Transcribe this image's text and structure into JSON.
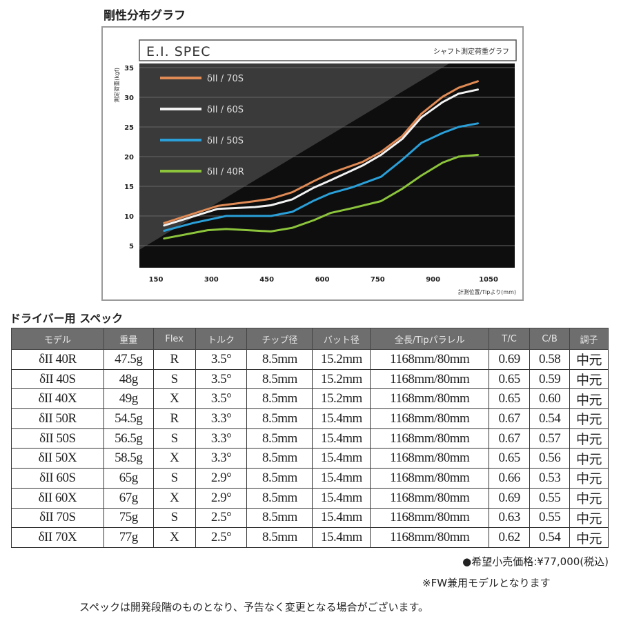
{
  "title": "剛性分布グラフ",
  "chart_data": {
    "type": "line",
    "header": "E.I. SPEC",
    "subtitle": "シャフト測定荷重グラフ",
    "ylabel": "測定荷重(kgf)",
    "xlabel": "計測位置/Tipより(mm)",
    "xticks": [
      150,
      300,
      450,
      600,
      750,
      900,
      1050
    ],
    "yticks": [
      5,
      10,
      15,
      20,
      25,
      30,
      35
    ],
    "xlim": [
      150,
      1050
    ],
    "ylim": [
      5,
      35
    ],
    "grid": true,
    "legend": "top-left",
    "series": [
      {
        "name": "δII / 70S",
        "color": "#e08a55",
        "x": [
          172,
          317,
          418,
          461,
          519,
          578,
          622,
          709,
          759,
          817,
          868,
          926,
          969,
          1021
        ],
        "y": [
          8.8,
          11.7,
          12.5,
          12.9,
          14.0,
          15.9,
          17.2,
          19.1,
          20.8,
          23.5,
          27.2,
          30.1,
          31.6,
          32.7
        ]
      },
      {
        "name": "δII / 60S",
        "color": "#f2f2f2",
        "x": [
          172,
          317,
          418,
          461,
          519,
          578,
          622,
          709,
          759,
          817,
          868,
          926,
          969,
          1021
        ],
        "y": [
          8.4,
          11.2,
          11.5,
          11.8,
          12.8,
          14.8,
          16.0,
          18.5,
          20.3,
          23.0,
          26.6,
          29.2,
          30.6,
          31.3
        ]
      },
      {
        "name": "δII / 50S",
        "color": "#2a9fd8",
        "x": [
          172,
          250,
          340,
          461,
          519,
          578,
          622,
          680,
          759,
          817,
          868,
          926,
          969,
          1021
        ],
        "y": [
          7.5,
          8.8,
          10.0,
          10.0,
          10.7,
          12.6,
          13.8,
          14.8,
          16.6,
          19.5,
          22.3,
          24.0,
          25.0,
          25.6
        ]
      },
      {
        "name": "δII / 40R",
        "color": "#8cc43c",
        "x": [
          172,
          290,
          340,
          461,
          519,
          578,
          622,
          680,
          759,
          817,
          868,
          926,
          969,
          1021
        ],
        "y": [
          6.2,
          7.6,
          7.8,
          7.4,
          8.0,
          9.3,
          10.5,
          11.3,
          12.5,
          14.6,
          16.8,
          19.0,
          20.0,
          20.3
        ]
      }
    ]
  },
  "specs": {
    "title": "ドライバー用 スペック",
    "headers": [
      "モデル",
      "重量",
      "Flex",
      "トルク",
      "チップ径",
      "バット径",
      "全長/Tipパラレル",
      "T/C",
      "C/B",
      "調子"
    ],
    "rows": [
      [
        "δII 40R",
        "47.5g",
        "R",
        "3.5°",
        "8.5mm",
        "15.2mm",
        "1168mm/80mm",
        "0.69",
        "0.58",
        "中元"
      ],
      [
        "δII 40S",
        "48g",
        "S",
        "3.5°",
        "8.5mm",
        "15.2mm",
        "1168mm/80mm",
        "0.65",
        "0.59",
        "中元"
      ],
      [
        "δII 40X",
        "49g",
        "X",
        "3.5°",
        "8.5mm",
        "15.2mm",
        "1168mm/80mm",
        "0.65",
        "0.60",
        "中元"
      ],
      [
        "δII 50R",
        "54.5g",
        "R",
        "3.3°",
        "8.5mm",
        "15.4mm",
        "1168mm/80mm",
        "0.67",
        "0.54",
        "中元"
      ],
      [
        "δII 50S",
        "56.5g",
        "S",
        "3.3°",
        "8.5mm",
        "15.4mm",
        "1168mm/80mm",
        "0.67",
        "0.57",
        "中元"
      ],
      [
        "δII 50X",
        "58.5g",
        "X",
        "3.3°",
        "8.5mm",
        "15.4mm",
        "1168mm/80mm",
        "0.65",
        "0.56",
        "中元"
      ],
      [
        "δII 60S",
        "65g",
        "S",
        "2.9°",
        "8.5mm",
        "15.4mm",
        "1168mm/80mm",
        "0.66",
        "0.53",
        "中元"
      ],
      [
        "δII 60X",
        "67g",
        "X",
        "2.9°",
        "8.5mm",
        "15.4mm",
        "1168mm/80mm",
        "0.69",
        "0.55",
        "中元"
      ],
      [
        "δII 70S",
        "75g",
        "S",
        "2.5°",
        "8.5mm",
        "15.4mm",
        "1168mm/80mm",
        "0.63",
        "0.55",
        "中元"
      ],
      [
        "δII 70X",
        "77g",
        "X",
        "2.5°",
        "8.5mm",
        "15.4mm",
        "1168mm/80mm",
        "0.62",
        "0.54",
        "中元"
      ]
    ]
  },
  "footer": {
    "price": "●希望小売価格:¥77,000(税込)",
    "note": "※FW兼用モデルとなります",
    "disclaimer": "スペックは開発段階のものとなり、予告なく変更となる場合がございます。"
  }
}
